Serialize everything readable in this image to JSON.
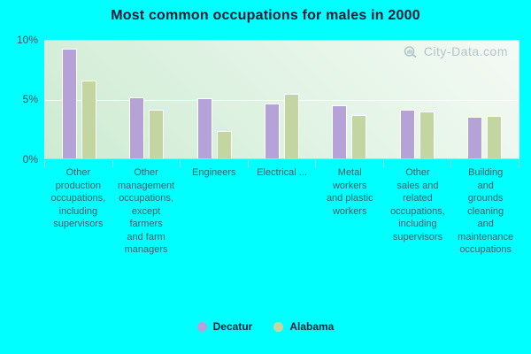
{
  "title": "Most common occupations for males in 2000",
  "watermark": {
    "text": "City-Data.com"
  },
  "colors": {
    "background": "#00ffff",
    "plot_gradient_light": "#f4faf4",
    "plot_gradient_dark": "#cdebd2",
    "decatur_bar": "#b5a3d8",
    "alabama_bar": "#c3d5a0",
    "title_text": "#1a1a33",
    "axis_text": "#4c4c5a",
    "category_text": "#4c5866",
    "tick_line": "#aecccc",
    "watermark_text": "#a9bdc4"
  },
  "chart_data": {
    "type": "bar",
    "title": "Most common occupations for males in 2000",
    "categories": [
      "Other production occupations, including supervisors",
      "Other management occupations, except farmers and farm managers",
      "Engineers",
      "Electrical ...",
      "Metal workers and plastic workers",
      "Other sales and related occupations, including supervisors",
      "Building and grounds cleaning and maintenance occupations"
    ],
    "category_lines": [
      [
        "Other",
        "production",
        "occupations,",
        "including",
        "supervisors"
      ],
      [
        "Other",
        "management",
        "occupations,",
        "except",
        "farmers",
        "and farm",
        "managers"
      ],
      [
        "Engineers"
      ],
      [
        "Electrical ..."
      ],
      [
        "Metal",
        "workers",
        "and plastic",
        "workers"
      ],
      [
        "Other",
        "sales and",
        "related",
        "occupations,",
        "including",
        "supervisors"
      ],
      [
        "Building",
        "and",
        "grounds",
        "cleaning",
        "and",
        "maintenance",
        "occupations"
      ]
    ],
    "series": [
      {
        "name": "Decatur",
        "color": "#b5a3d8",
        "values": [
          9.3,
          5.2,
          5.1,
          4.7,
          4.5,
          4.1,
          3.5
        ]
      },
      {
        "name": "Alabama",
        "color": "#c3d5a0",
        "values": [
          6.6,
          4.1,
          2.3,
          5.5,
          3.7,
          4.0,
          3.6
        ]
      }
    ],
    "xlabel": "",
    "ylabel": "",
    "ylim": [
      0,
      10
    ],
    "yticks": [
      {
        "value": 10,
        "label": "10%"
      },
      {
        "value": 5,
        "label": "5%"
      },
      {
        "value": 0,
        "label": "0%"
      }
    ],
    "grid": "horizontal gridline at 5%",
    "legend_position": "bottom"
  }
}
